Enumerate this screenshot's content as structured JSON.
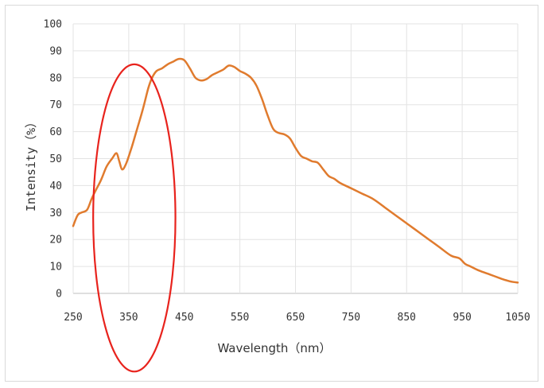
{
  "chart_data": {
    "type": "line",
    "title": "",
    "xlabel": "Wavelength（nm）",
    "ylabel": "Intensity（%）",
    "xlim": [
      250,
      1050
    ],
    "ylim": [
      0,
      100
    ],
    "x_ticks": [
      250,
      350,
      450,
      550,
      650,
      750,
      850,
      950,
      1050
    ],
    "y_ticks": [
      0,
      10,
      20,
      30,
      40,
      50,
      60,
      70,
      80,
      90,
      100
    ],
    "grid": "vertical and horizontal",
    "line_color": "#e07b2e",
    "series": [
      {
        "x": [
          250,
          258,
          265,
          275,
          283,
          290,
          300,
          310,
          320,
          328,
          333,
          338,
          345,
          355,
          365,
          375,
          385,
          392,
          400,
          410,
          420,
          430,
          440,
          450,
          460,
          470,
          480,
          490,
          500,
          510,
          520,
          530,
          540,
          550,
          560,
          570,
          580,
          590,
          600,
          610,
          620,
          630,
          640,
          650,
          660,
          670,
          680,
          690,
          700,
          710,
          720,
          730,
          750,
          770,
          790,
          810,
          830,
          850,
          870,
          890,
          910,
          930,
          945,
          955,
          965,
          980,
          1000,
          1020,
          1035,
          1050
        ],
        "y": [
          25,
          29,
          30,
          31,
          35,
          38,
          42,
          47,
          50,
          52,
          49,
          46,
          48,
          54,
          61,
          68,
          76,
          80,
          82.5,
          83.5,
          85,
          86,
          87,
          86.5,
          83.5,
          80,
          79,
          79.5,
          81,
          82,
          83,
          84.5,
          84,
          82.5,
          81.5,
          80,
          77,
          72,
          66,
          61,
          59.5,
          59,
          57.5,
          54,
          51,
          50,
          49,
          48.5,
          46,
          43.5,
          42.5,
          41,
          39,
          37,
          35,
          32,
          29,
          26,
          23,
          20,
          17,
          14,
          13,
          11,
          10,
          8.5,
          7,
          5.5,
          4.5,
          4
        ]
      }
    ]
  },
  "annotation": {
    "shape": "ellipse",
    "color": "#e8231d",
    "center": [
      360,
      28
    ],
    "radius_x": 74,
    "radius_y": 57
  }
}
